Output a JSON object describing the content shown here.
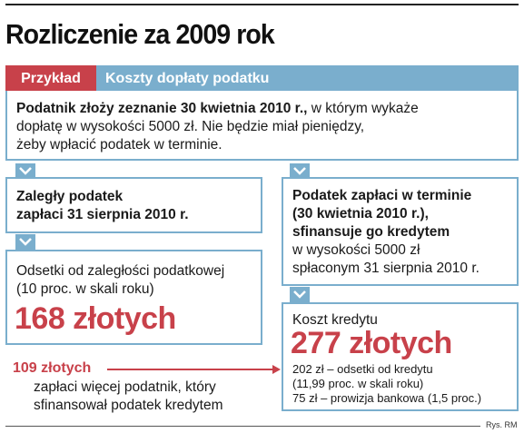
{
  "title": "Rozliczenie za 2009 rok",
  "header": {
    "tag": "Przykład",
    "text": "Koszty dopłaty podatku"
  },
  "intro": {
    "bold": "Podatnik złoży zeznanie 30 kwietnia 2010 r.,",
    "rest1": " w którym wykaże",
    "line2": "dopłatę w wysokości 5000 zł. Nie będzie miał pieniędzy,",
    "line3": "żeby wpłacić podatek w terminie."
  },
  "left": {
    "step1": {
      "line1": "Zaległy podatek",
      "line2": "zapłaci 31 sierpnia 2010 r."
    },
    "step2": {
      "line1": "Odsetki od zaległości podatkowej",
      "line2": "(10 proc. w skali roku)",
      "amount": "168 złotych"
    }
  },
  "right": {
    "step1": {
      "line1": "Podatek zapłaci w terminie",
      "line2": "(30 kwietnia 2010 r.),",
      "line3": "sfinansuje go kredytem",
      "line4": "w wysokości 5000 zł",
      "line5": "spłaconym 31 sierpnia 2010 r."
    },
    "step2": {
      "label": "Koszt kredytu",
      "amount": "277 złotych",
      "line1": "202 zł – odsetki od kredytu",
      "line2": "(11,99 proc. w skali roku)",
      "line3": "75 zł – prowizja bankowa (1,5 proc.)"
    }
  },
  "comparison": {
    "amount": "109 złotych",
    "line1": "zapłaci więcej podatnik, który",
    "line2": "sfinansował podatek kredytem"
  },
  "credit": "Rys. RM",
  "colors": {
    "accent_blue": "#7aaecd",
    "accent_red": "#c8414a",
    "text": "#1a1a1a"
  },
  "icons": [
    "chevron-down-icon",
    "arrow-right-icon"
  ]
}
